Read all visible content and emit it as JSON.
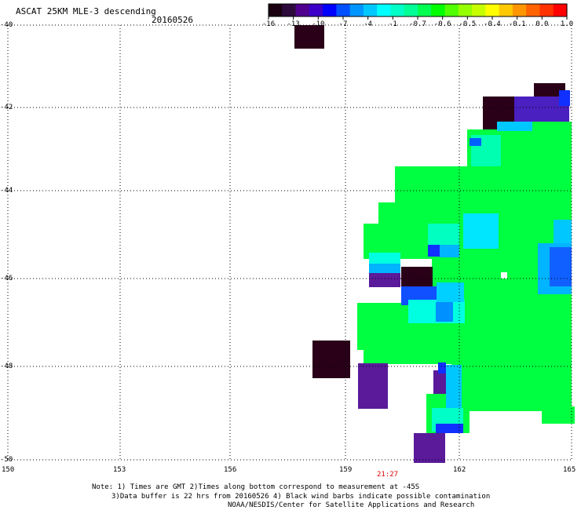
{
  "header": {
    "title": "ASCAT 25KM MLE-3 descending",
    "date": "20160526"
  },
  "colorbar": {
    "labels": [
      "-16",
      "-13",
      "-10",
      "-7",
      "-4",
      "-1",
      "-0.7",
      "-0.6",
      "-0.5",
      "-0.4",
      "-0.1",
      "0.0",
      "1.0"
    ],
    "colors": [
      "#1a0010",
      "#2d0a3c",
      "#50008c",
      "#3c00c8",
      "#0000ff",
      "#0050ff",
      "#0096ff",
      "#00c8ff",
      "#00ffff",
      "#00ffc8",
      "#00ff96",
      "#00ff50",
      "#00ff00",
      "#50ff00",
      "#96ff00",
      "#c8ff00",
      "#ffff00",
      "#ffc800",
      "#ff9600",
      "#ff6400",
      "#ff3200",
      "#ff0000"
    ]
  },
  "axes": {
    "lat_labels": [
      "-40",
      "-42",
      "-44",
      "-46",
      "-48",
      "-50"
    ],
    "lon_labels": [
      "150",
      "153",
      "156",
      "159",
      "162",
      "165"
    ]
  },
  "orbit_time": "21:27",
  "notes": {
    "line1": "Note: 1) Times are GMT 2)Times along bottom correspond to measurement at -45S",
    "line2": "3)Data buffer is 22 hrs from 20160526 4) Black wind barbs indicate possible contamination",
    "line3": "NOAA/NESDIS/Center for Satellite Applications and Research"
  },
  "legend_colors": {
    "dark": "#2a0018",
    "purple": "#5a1a9a",
    "blue": "#1030ff",
    "lightblue": "#00b4ff",
    "cyan": "#00ffe0",
    "green": "#00ff40"
  }
}
